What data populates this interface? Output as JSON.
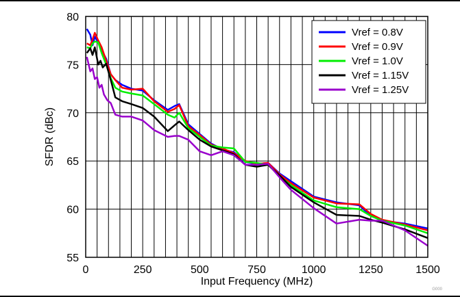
{
  "figure_id": "G000",
  "chart_data": {
    "type": "line",
    "title": "",
    "xlabel": "Input Frequency (MHz)",
    "ylabel": "SFDR (dBc)",
    "xlim": [
      0,
      1500
    ],
    "ylim": [
      55,
      80
    ],
    "xticks": [
      0,
      250,
      500,
      750,
      1000,
      1250,
      1500
    ],
    "yticks": [
      55,
      60,
      65,
      70,
      75,
      80
    ],
    "grid": true,
    "legend_position": "top-right",
    "series": [
      {
        "name": "Vref = 0.8V",
        "color": "#0000ff",
        "x": [
          5,
          20,
          30,
          40,
          55,
          70,
          90,
          110,
          130,
          160,
          200,
          250,
          300,
          360,
          390,
          410,
          450,
          500,
          550,
          600,
          650,
          700,
          750,
          800,
          850,
          900,
          1000,
          1100,
          1200,
          1250,
          1300,
          1400,
          1500
        ],
        "y": [
          78.7,
          78.1,
          77.0,
          77.9,
          77.3,
          76.5,
          75.6,
          74.0,
          73.4,
          72.9,
          72.5,
          72.3,
          71.3,
          70.3,
          70.7,
          70.9,
          68.8,
          67.8,
          66.8,
          66.2,
          65.9,
          64.9,
          64.7,
          64.8,
          63.7,
          62.9,
          61.3,
          60.7,
          60.4,
          59.3,
          58.8,
          58.5,
          58.0
        ]
      },
      {
        "name": "Vref = 0.9V",
        "color": "#ff0000",
        "x": [
          5,
          20,
          30,
          40,
          55,
          70,
          90,
          110,
          130,
          160,
          200,
          250,
          300,
          360,
          390,
          410,
          450,
          500,
          550,
          600,
          650,
          700,
          750,
          800,
          850,
          900,
          1000,
          1100,
          1200,
          1250,
          1300,
          1400,
          1500
        ],
        "y": [
          77.2,
          77.0,
          77.6,
          78.3,
          77.5,
          76.8,
          75.4,
          74.0,
          73.4,
          72.6,
          72.4,
          72.5,
          71.2,
          70.1,
          70.4,
          70.8,
          68.6,
          67.7,
          66.7,
          66.3,
          65.8,
          65.0,
          64.7,
          64.8,
          63.6,
          62.7,
          61.2,
          60.6,
          60.5,
          59.5,
          58.9,
          58.4,
          57.8
        ]
      },
      {
        "name": "Vref = 1.0V",
        "color": "#00ee00",
        "x": [
          5,
          20,
          30,
          40,
          55,
          70,
          90,
          110,
          130,
          160,
          200,
          250,
          300,
          360,
          390,
          410,
          450,
          500,
          550,
          600,
          650,
          700,
          750,
          800,
          850,
          900,
          1000,
          1100,
          1200,
          1250,
          1300,
          1400,
          1500
        ],
        "y": [
          76.8,
          76.7,
          77.2,
          77.4,
          77.3,
          76.2,
          75.0,
          73.6,
          72.6,
          72.2,
          72.0,
          71.8,
          70.9,
          69.8,
          69.5,
          70.0,
          68.4,
          67.5,
          66.6,
          66.4,
          66.3,
          64.9,
          64.8,
          64.6,
          63.4,
          62.5,
          60.9,
          60.2,
          60.0,
          59.3,
          58.8,
          58.3,
          57.5
        ]
      },
      {
        "name": "Vref = 1.15V",
        "color": "#000000",
        "x": [
          5,
          20,
          30,
          40,
          55,
          65,
          75,
          90,
          110,
          130,
          160,
          200,
          250,
          300,
          360,
          390,
          410,
          450,
          500,
          550,
          600,
          650,
          700,
          750,
          800,
          850,
          900,
          1000,
          1100,
          1200,
          1250,
          1300,
          1400,
          1500
        ],
        "y": [
          76.2,
          76.7,
          76.0,
          76.8,
          75.0,
          75.4,
          74.7,
          75.1,
          73.4,
          71.6,
          71.2,
          70.9,
          70.5,
          69.6,
          68.1,
          68.7,
          69.1,
          68.2,
          67.2,
          66.5,
          66.1,
          65.7,
          64.6,
          64.4,
          64.6,
          63.5,
          62.3,
          60.7,
          59.4,
          59.3,
          58.9,
          58.6,
          57.9,
          57.0
        ]
      },
      {
        "name": "Vref = 1.25V",
        "color": "#9900cc",
        "x": [
          5,
          20,
          30,
          40,
          50,
          60,
          70,
          80,
          95,
          110,
          130,
          160,
          200,
          250,
          300,
          360,
          390,
          410,
          450,
          500,
          550,
          600,
          650,
          700,
          750,
          800,
          850,
          900,
          1000,
          1100,
          1200,
          1250,
          1300,
          1400,
          1500
        ],
        "y": [
          75.8,
          74.3,
          74.6,
          73.5,
          73.7,
          72.6,
          72.9,
          71.9,
          71.3,
          71.0,
          69.8,
          69.6,
          69.6,
          69.2,
          68.2,
          67.5,
          67.6,
          67.6,
          67.2,
          66.0,
          65.6,
          66.0,
          65.6,
          64.6,
          64.6,
          64.7,
          63.3,
          62.0,
          60.1,
          58.5,
          58.9,
          58.8,
          58.8,
          57.8,
          56.2
        ]
      }
    ]
  }
}
